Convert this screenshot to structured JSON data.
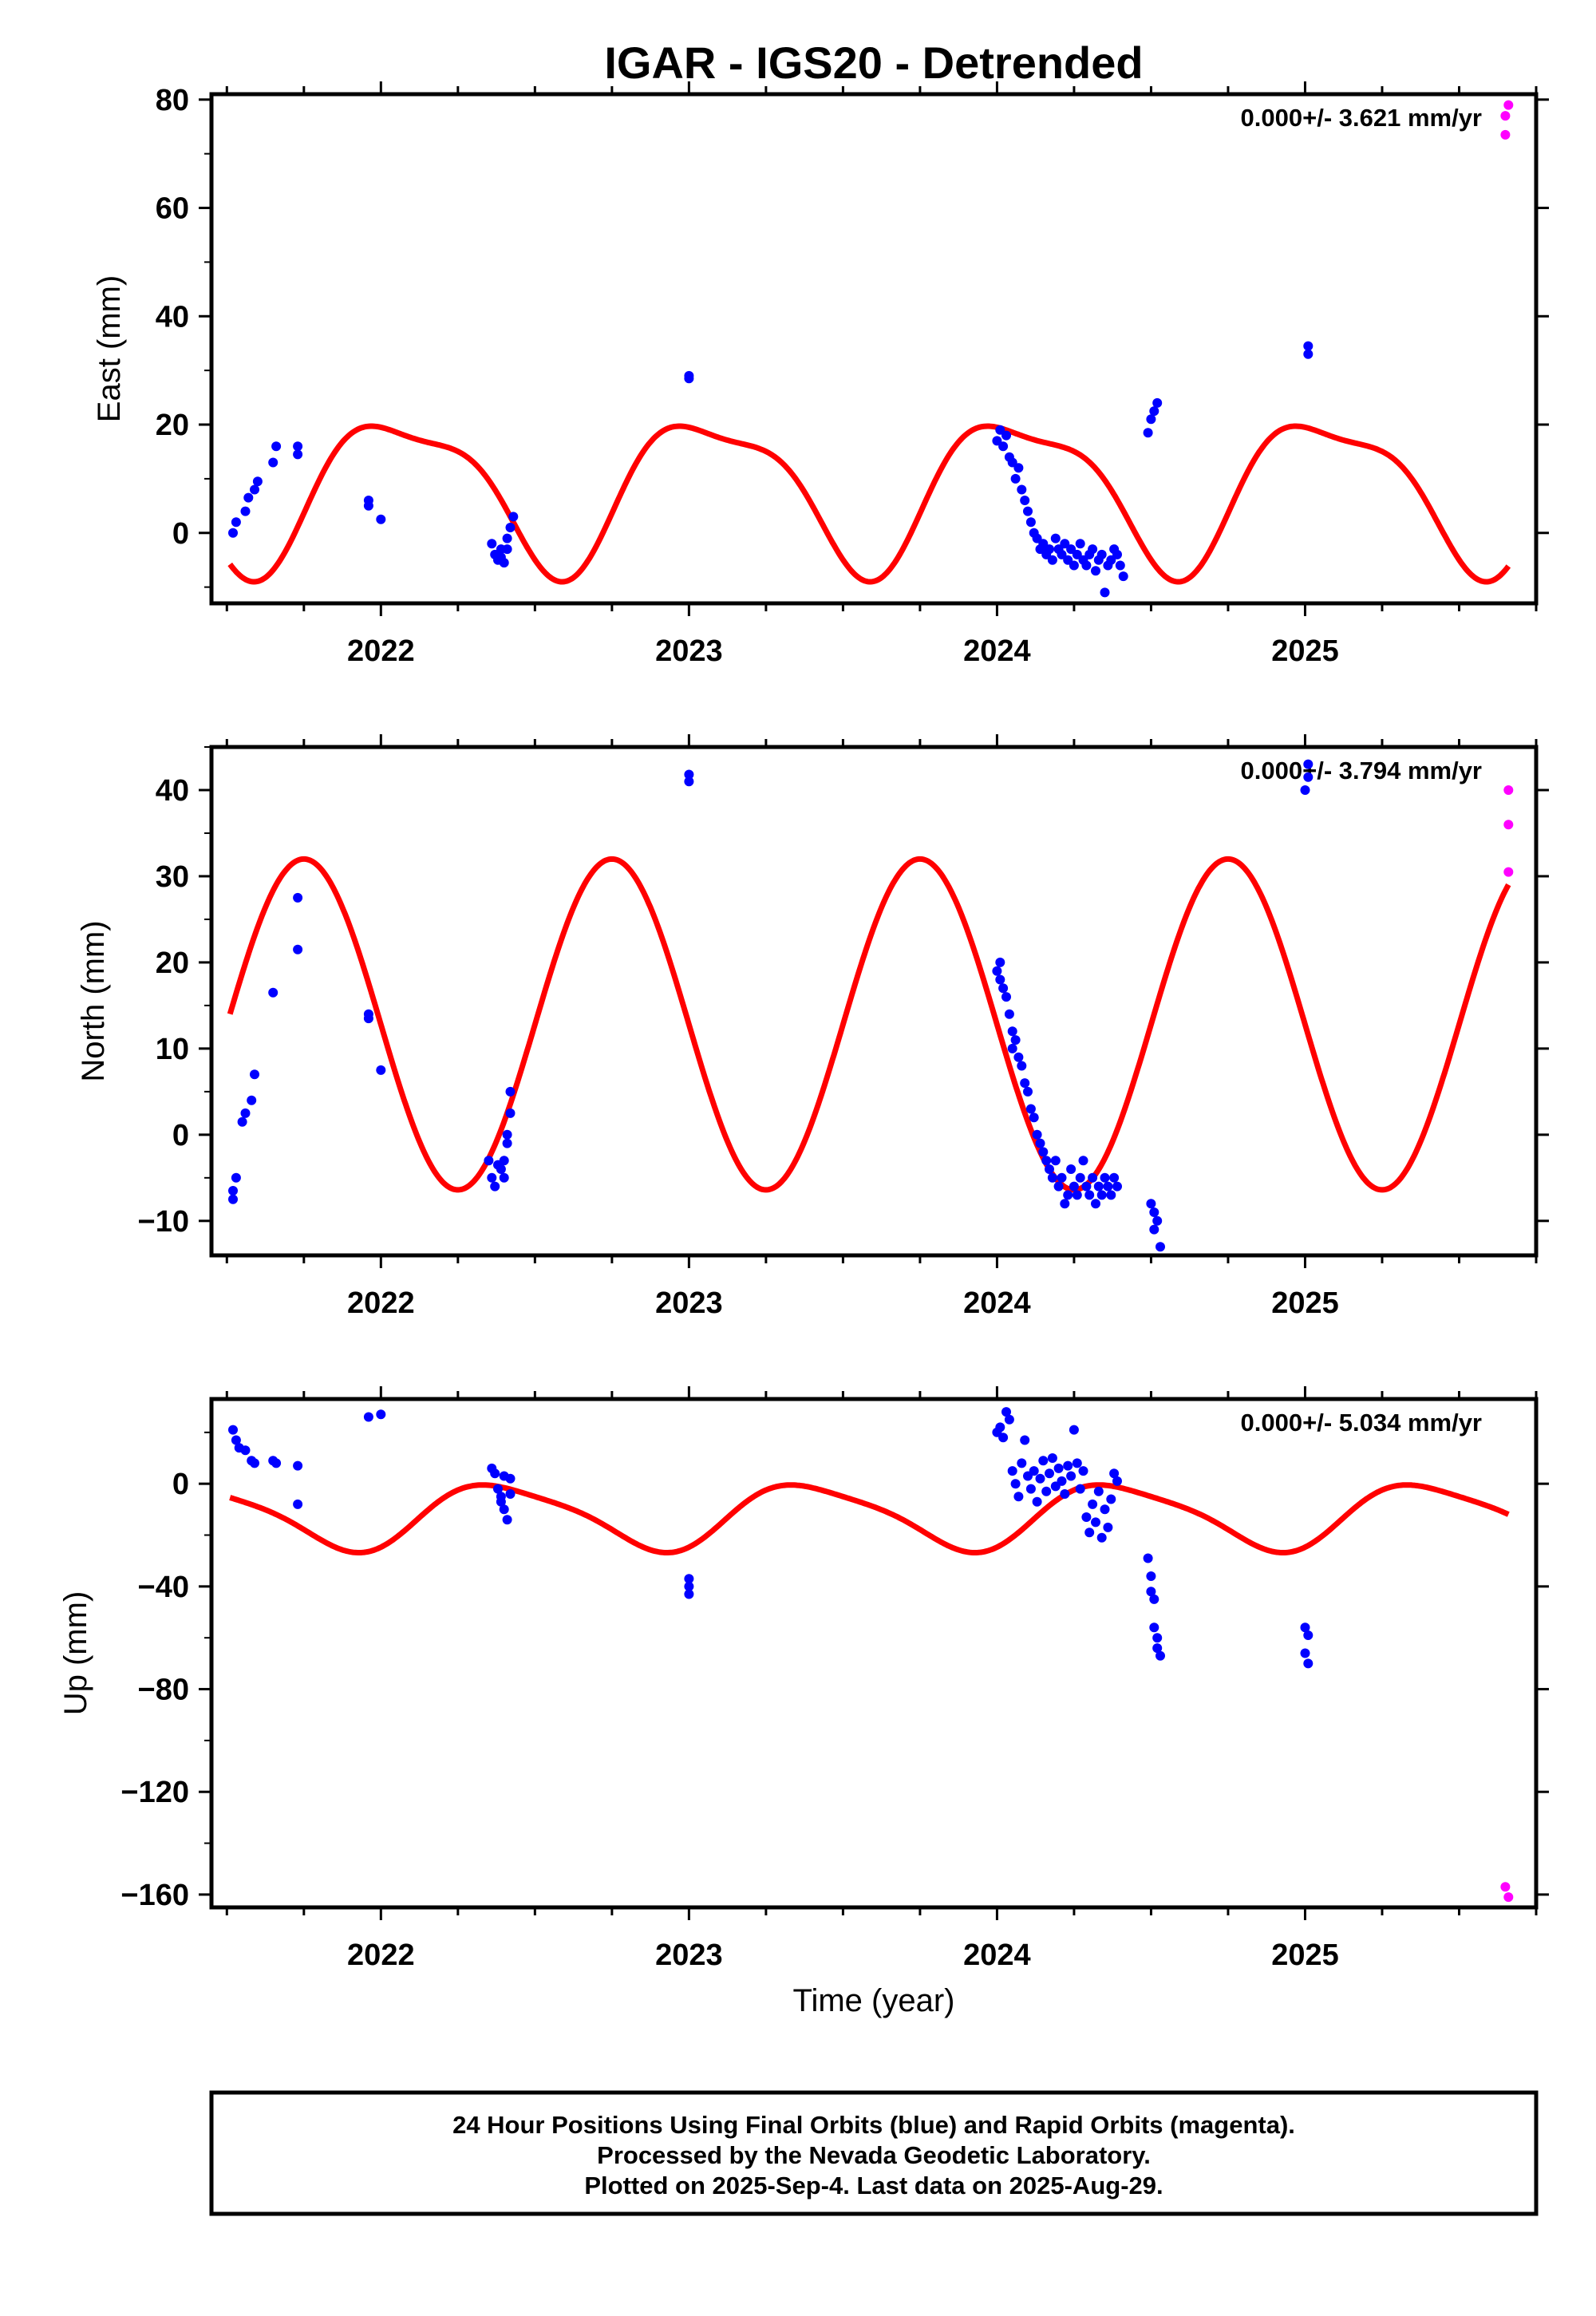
{
  "title": "IGAR - IGS20 - Detrended",
  "colors": {
    "final": "#0000ff",
    "rapid": "#ff00ff",
    "model": "#ff0000",
    "axis": "#000000"
  },
  "xlabel": "Time (year)",
  "caption": [
    "24 Hour Positions Using Final Orbits (blue) and Rapid Orbits (magenta).",
    "Processed by the Nevada Geodetic Laboratory.",
    "Plotted on 2025-Sep-4. Last data on 2025-Aug-29."
  ],
  "chart_data": [
    {
      "type": "scatter",
      "ylabel": "East (mm)",
      "rate": "0.000+/- 3.621 mm/yr",
      "xlim": [
        2021.45,
        2025.75
      ],
      "ylim": [
        -13,
        81
      ],
      "yticks": [
        0,
        20,
        40,
        60,
        80
      ],
      "xticks": [
        2022,
        2023,
        2024,
        2025
      ],
      "model": {
        "offset": 8.3,
        "a1": -13.5,
        "phase1_deg": 205,
        "a2": 4.0,
        "phase2_deg": 255,
        "xstart": 2021.51,
        "xend": 2025.66
      },
      "series": [
        {
          "name": "Final Orbits",
          "color": "#0000ff",
          "points": [
            [
              2021.52,
              0
            ],
            [
              2021.53,
              2
            ],
            [
              2021.56,
              4
            ],
            [
              2021.57,
              6.5
            ],
            [
              2021.59,
              8
            ],
            [
              2021.6,
              9.5
            ],
            [
              2021.65,
              13
            ],
            [
              2021.66,
              16
            ],
            [
              2021.73,
              14.5
            ],
            [
              2021.73,
              16
            ],
            [
              2021.96,
              5
            ],
            [
              2021.96,
              6
            ],
            [
              2022.0,
              2.5
            ],
            [
              2022.36,
              -2
            ],
            [
              2022.37,
              -4
            ],
            [
              2022.38,
              -5
            ],
            [
              2022.39,
              -3
            ],
            [
              2022.39,
              -4.5
            ],
            [
              2022.4,
              -5.5
            ],
            [
              2022.41,
              -1
            ],
            [
              2022.41,
              -3
            ],
            [
              2022.42,
              1
            ],
            [
              2022.43,
              3
            ],
            [
              2023.0,
              28.5
            ],
            [
              2023.0,
              29
            ],
            [
              2024.0,
              17
            ],
            [
              2024.01,
              19
            ],
            [
              2024.02,
              16
            ],
            [
              2024.03,
              18
            ],
            [
              2024.04,
              14
            ],
            [
              2024.05,
              13
            ],
            [
              2024.06,
              10
            ],
            [
              2024.07,
              12
            ],
            [
              2024.08,
              8
            ],
            [
              2024.09,
              6
            ],
            [
              2024.1,
              4
            ],
            [
              2024.11,
              2
            ],
            [
              2024.12,
              0
            ],
            [
              2024.13,
              -1
            ],
            [
              2024.14,
              -3
            ],
            [
              2024.15,
              -2
            ],
            [
              2024.16,
              -4
            ],
            [
              2024.17,
              -3
            ],
            [
              2024.18,
              -5
            ],
            [
              2024.19,
              -1
            ],
            [
              2024.2,
              -3
            ],
            [
              2024.21,
              -4
            ],
            [
              2024.22,
              -2
            ],
            [
              2024.23,
              -5
            ],
            [
              2024.24,
              -3
            ],
            [
              2024.25,
              -6
            ],
            [
              2024.26,
              -4
            ],
            [
              2024.27,
              -2
            ],
            [
              2024.28,
              -5
            ],
            [
              2024.29,
              -6
            ],
            [
              2024.3,
              -4
            ],
            [
              2024.31,
              -3
            ],
            [
              2024.32,
              -7
            ],
            [
              2024.33,
              -5
            ],
            [
              2024.34,
              -4
            ],
            [
              2024.35,
              -11
            ],
            [
              2024.36,
              -6
            ],
            [
              2024.37,
              -5
            ],
            [
              2024.38,
              -3
            ],
            [
              2024.39,
              -4
            ],
            [
              2024.4,
              -6
            ],
            [
              2024.41,
              -8
            ],
            [
              2024.49,
              18.5
            ],
            [
              2024.5,
              21
            ],
            [
              2024.51,
              22.5
            ],
            [
              2024.52,
              24
            ],
            [
              2025.01,
              33
            ],
            [
              2025.01,
              34.5
            ]
          ]
        },
        {
          "name": "Rapid Orbits",
          "color": "#ff00ff",
          "points": [
            [
              2025.65,
              73.5
            ],
            [
              2025.65,
              77
            ],
            [
              2025.66,
              79
            ]
          ]
        }
      ]
    },
    {
      "type": "scatter",
      "ylabel": "North (mm)",
      "rate": "0.000+/- 3.794 mm/yr",
      "xlim": [
        2021.45,
        2025.75
      ],
      "ylim": [
        -14,
        45
      ],
      "yticks": [
        -10,
        0,
        10,
        20,
        30,
        40
      ],
      "xticks": [
        2022,
        2023,
        2024,
        2025
      ],
      "model": {
        "offset": 12.8,
        "a1": -19.2,
        "phase1_deg": 90,
        "a2": 0,
        "phase2_deg": 0,
        "xstart": 2021.51,
        "xend": 2025.66
      },
      "series": [
        {
          "name": "Final Orbits",
          "color": "#0000ff",
          "points": [
            [
              2021.52,
              -6.5
            ],
            [
              2021.52,
              -7.5
            ],
            [
              2021.53,
              -5
            ],
            [
              2021.55,
              1.5
            ],
            [
              2021.56,
              2.5
            ],
            [
              2021.58,
              4
            ],
            [
              2021.59,
              7
            ],
            [
              2021.65,
              16.5
            ],
            [
              2021.73,
              21.5
            ],
            [
              2021.73,
              27.5
            ],
            [
              2021.96,
              13.5
            ],
            [
              2021.96,
              14
            ],
            [
              2022.0,
              7.5
            ],
            [
              2022.35,
              -3
            ],
            [
              2022.36,
              -5
            ],
            [
              2022.37,
              -6
            ],
            [
              2022.38,
              -3.5
            ],
            [
              2022.39,
              -4
            ],
            [
              2022.4,
              -3
            ],
            [
              2022.4,
              -5
            ],
            [
              2022.41,
              0
            ],
            [
              2022.41,
              -1
            ],
            [
              2022.42,
              2.5
            ],
            [
              2022.42,
              5
            ],
            [
              2023.0,
              41
            ],
            [
              2023.0,
              41.8
            ],
            [
              2024.0,
              19
            ],
            [
              2024.01,
              20
            ],
            [
              2024.01,
              18
            ],
            [
              2024.02,
              17
            ],
            [
              2024.03,
              16
            ],
            [
              2024.04,
              14
            ],
            [
              2024.05,
              12
            ],
            [
              2024.05,
              10
            ],
            [
              2024.06,
              11
            ],
            [
              2024.07,
              9
            ],
            [
              2024.08,
              8
            ],
            [
              2024.09,
              6
            ],
            [
              2024.1,
              5
            ],
            [
              2024.11,
              3
            ],
            [
              2024.12,
              2
            ],
            [
              2024.13,
              0
            ],
            [
              2024.14,
              -1
            ],
            [
              2024.15,
              -2
            ],
            [
              2024.16,
              -3
            ],
            [
              2024.17,
              -4
            ],
            [
              2024.18,
              -5
            ],
            [
              2024.19,
              -3
            ],
            [
              2024.2,
              -6
            ],
            [
              2024.21,
              -5
            ],
            [
              2024.22,
              -8
            ],
            [
              2024.23,
              -7
            ],
            [
              2024.24,
              -4
            ],
            [
              2024.25,
              -6
            ],
            [
              2024.26,
              -7
            ],
            [
              2024.27,
              -5
            ],
            [
              2024.28,
              -3
            ],
            [
              2024.29,
              -6
            ],
            [
              2024.3,
              -7
            ],
            [
              2024.31,
              -5
            ],
            [
              2024.32,
              -8
            ],
            [
              2024.33,
              -6
            ],
            [
              2024.34,
              -7
            ],
            [
              2024.35,
              -5
            ],
            [
              2024.36,
              -6
            ],
            [
              2024.37,
              -7
            ],
            [
              2024.38,
              -5
            ],
            [
              2024.39,
              -6
            ],
            [
              2024.5,
              -8
            ],
            [
              2024.51,
              -9
            ],
            [
              2024.51,
              -11
            ],
            [
              2024.52,
              -10
            ],
            [
              2024.53,
              -13
            ],
            [
              2025.0,
              40
            ],
            [
              2025.01,
              41.5
            ],
            [
              2025.01,
              43
            ]
          ]
        },
        {
          "name": "Rapid Orbits",
          "color": "#ff00ff",
          "points": [
            [
              2025.66,
              30.5
            ],
            [
              2025.66,
              36
            ],
            [
              2025.66,
              40
            ]
          ]
        }
      ]
    },
    {
      "type": "scatter",
      "ylabel": "Up (mm)",
      "rate": "0.000+/- 5.034 mm/yr",
      "xlim": [
        2021.45,
        2025.75
      ],
      "ylim": [
        -165,
        33
      ],
      "yticks": [
        -160,
        -120,
        -80,
        -40,
        0
      ],
      "xticks": [
        2022,
        2023,
        2024,
        2025
      ],
      "model": {
        "offset": -12.5,
        "a1": 12.5,
        "phase1_deg": 142,
        "a2": 2.5,
        "phase2_deg": 160,
        "xstart": 2021.51,
        "xend": 2025.66
      },
      "series": [
        {
          "name": "Final Orbits",
          "color": "#0000ff",
          "points": [
            [
              2021.52,
              21
            ],
            [
              2021.53,
              17
            ],
            [
              2021.54,
              14
            ],
            [
              2021.56,
              13
            ],
            [
              2021.58,
              9
            ],
            [
              2021.59,
              8
            ],
            [
              2021.65,
              9
            ],
            [
              2021.66,
              8
            ],
            [
              2021.73,
              7
            ],
            [
              2021.73,
              -8
            ],
            [
              2021.96,
              26
            ],
            [
              2022.0,
              27
            ],
            [
              2022.36,
              6
            ],
            [
              2022.37,
              4
            ],
            [
              2022.38,
              -2
            ],
            [
              2022.39,
              -5
            ],
            [
              2022.39,
              -7
            ],
            [
              2022.4,
              3
            ],
            [
              2022.4,
              -10
            ],
            [
              2022.41,
              -14
            ],
            [
              2022.42,
              2
            ],
            [
              2022.42,
              -4
            ],
            [
              2023.0,
              -37
            ],
            [
              2023.0,
              -40
            ],
            [
              2023.0,
              -43
            ],
            [
              2024.0,
              20
            ],
            [
              2024.01,
              22
            ],
            [
              2024.02,
              18
            ],
            [
              2024.03,
              28
            ],
            [
              2024.04,
              25
            ],
            [
              2024.05,
              5
            ],
            [
              2024.06,
              0
            ],
            [
              2024.07,
              -5
            ],
            [
              2024.08,
              8
            ],
            [
              2024.09,
              17
            ],
            [
              2024.1,
              3
            ],
            [
              2024.11,
              -2
            ],
            [
              2024.12,
              5
            ],
            [
              2024.13,
              -7
            ],
            [
              2024.14,
              2
            ],
            [
              2024.15,
              9
            ],
            [
              2024.16,
              -3
            ],
            [
              2024.17,
              4
            ],
            [
              2024.18,
              10
            ],
            [
              2024.19,
              -1
            ],
            [
              2024.2,
              6
            ],
            [
              2024.21,
              1
            ],
            [
              2024.22,
              -4
            ],
            [
              2024.23,
              7
            ],
            [
              2024.24,
              3
            ],
            [
              2024.25,
              21
            ],
            [
              2024.26,
              8
            ],
            [
              2024.27,
              -2
            ],
            [
              2024.28,
              5
            ],
            [
              2024.29,
              -13
            ],
            [
              2024.3,
              -19
            ],
            [
              2024.31,
              -8
            ],
            [
              2024.32,
              -15
            ],
            [
              2024.33,
              -3
            ],
            [
              2024.34,
              -21
            ],
            [
              2024.35,
              -10
            ],
            [
              2024.36,
              -17
            ],
            [
              2024.37,
              -6
            ],
            [
              2024.38,
              4
            ],
            [
              2024.39,
              1
            ],
            [
              2024.49,
              -29
            ],
            [
              2024.5,
              -36
            ],
            [
              2024.5,
              -42
            ],
            [
              2024.51,
              -45
            ],
            [
              2024.51,
              -56
            ],
            [
              2024.52,
              -60
            ],
            [
              2024.52,
              -64
            ],
            [
              2024.53,
              -67
            ],
            [
              2025.0,
              -56
            ],
            [
              2025.01,
              -59
            ],
            [
              2025.0,
              -66
            ],
            [
              2025.01,
              -70
            ]
          ]
        },
        {
          "name": "Rapid Orbits",
          "color": "#ff00ff",
          "points": [
            [
              2025.65,
              -157
            ],
            [
              2025.66,
              -161
            ]
          ]
        }
      ]
    }
  ]
}
